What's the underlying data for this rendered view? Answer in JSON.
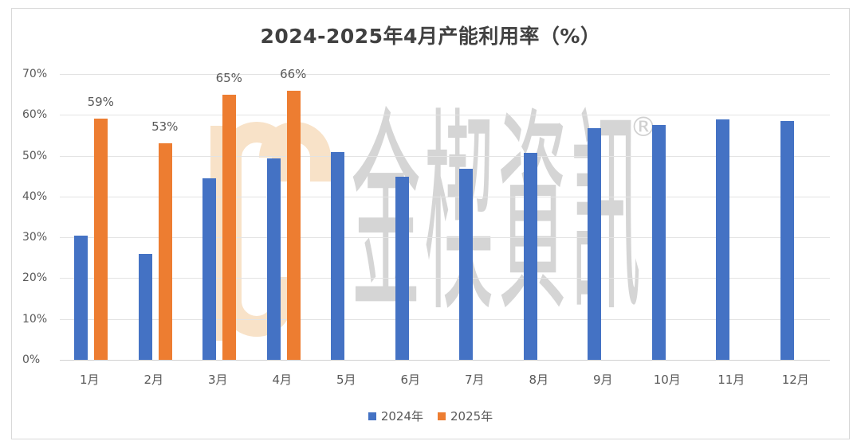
{
  "chart_data": {
    "type": "bar",
    "title": "2024-2025年4月产能利用率（%）",
    "xlabel": "",
    "ylabel": "",
    "ylim": [
      0,
      70
    ],
    "yticks": [
      "0%",
      "10%",
      "20%",
      "30%",
      "40%",
      "50%",
      "60%",
      "70%"
    ],
    "grid": true,
    "legend_position": "bottom",
    "categories": [
      "1月",
      "2月",
      "3月",
      "4月",
      "5月",
      "6月",
      "7月",
      "8月",
      "9月",
      "10月",
      "11月",
      "12月"
    ],
    "series": [
      {
        "name": "2024年",
        "color": "#4472C4",
        "values": [
          30.4,
          25.9,
          44.4,
          49.3,
          50.9,
          44.8,
          46.8,
          50.7,
          56.7,
          57.5,
          58.9,
          58.5
        ]
      },
      {
        "name": "2025年",
        "color": "#ED7D31",
        "values": [
          59,
          53,
          65,
          66,
          null,
          null,
          null,
          null,
          null,
          null,
          null,
          null
        ],
        "data_labels": [
          "59%",
          "53%",
          "65%",
          "66%"
        ]
      }
    ]
  },
  "watermark": {
    "brand_text": "金楔資訊",
    "registered_mark": "®",
    "logo_letters": "ICC"
  }
}
